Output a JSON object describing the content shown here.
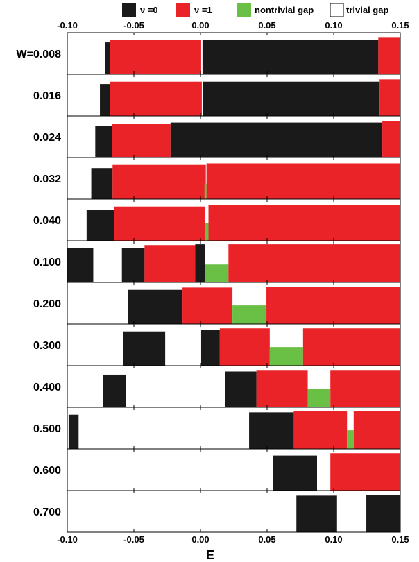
{
  "chart_data": {
    "type": "bar",
    "xlabel": "E",
    "xlim": [
      -0.1,
      0.15
    ],
    "xticks": [
      "-0.10",
      "-0.05",
      "0.00",
      "0.05",
      "0.10",
      "0.15"
    ],
    "xtick_values": [
      -0.1,
      -0.05,
      0.0,
      0.05,
      0.1,
      0.15
    ],
    "legend_position": "top",
    "legend": [
      {
        "label": "ν =0",
        "key": "nu0"
      },
      {
        "label": "ν =1",
        "key": "nu1"
      },
      {
        "label": "nontrivial gap",
        "key": "ntgap"
      },
      {
        "label": "trivial gap",
        "key": "tgap"
      }
    ],
    "colors": {
      "nu0": "#1a1a1a",
      "nu1": "#ea2328",
      "ntgap": "#6abf45",
      "tgap": "#ffffff"
    },
    "panels": [
      {
        "label": "W=0.008",
        "segments": [
          {
            "kind": "nu0",
            "x0": -0.0715,
            "x1": -0.068,
            "h": 0.82
          },
          {
            "kind": "nu1",
            "x0": -0.068,
            "x1": 0.0005,
            "h": 0.88
          },
          {
            "kind": "nu0",
            "x0": 0.0015,
            "x1": 0.1335,
            "h": 0.88
          },
          {
            "kind": "nu1",
            "x0": 0.1335,
            "x1": 0.15,
            "h": 0.94
          }
        ]
      },
      {
        "label": "0.016",
        "segments": [
          {
            "kind": "nu0",
            "x0": -0.0755,
            "x1": -0.068,
            "h": 0.82
          },
          {
            "kind": "nu1",
            "x0": -0.068,
            "x1": 0.001,
            "h": 0.88
          },
          {
            "kind": "nu0",
            "x0": 0.002,
            "x1": 0.1345,
            "h": 0.88
          },
          {
            "kind": "nu1",
            "x0": 0.1345,
            "x1": 0.15,
            "h": 0.94
          }
        ]
      },
      {
        "label": "0.024",
        "segments": [
          {
            "kind": "nu0",
            "x0": -0.079,
            "x1": -0.0665,
            "h": 0.82
          },
          {
            "kind": "nu1",
            "x0": -0.0665,
            "x1": -0.0225,
            "h": 0.86
          },
          {
            "kind": "nu0",
            "x0": -0.0225,
            "x1": 0.1365,
            "h": 0.9
          },
          {
            "kind": "nu1",
            "x0": 0.1365,
            "x1": 0.15,
            "h": 0.94
          }
        ]
      },
      {
        "label": "0.032",
        "segments": [
          {
            "kind": "nu0",
            "x0": -0.082,
            "x1": -0.066,
            "h": 0.8
          },
          {
            "kind": "nu1",
            "x0": -0.066,
            "x1": 0.004,
            "h": 0.88
          },
          {
            "kind": "ntgap",
            "x0": 0.003,
            "x1": 0.0045,
            "h": 0.4
          },
          {
            "kind": "nu1",
            "x0": 0.0045,
            "x1": 0.15,
            "h": 0.92
          }
        ]
      },
      {
        "label": "0.040",
        "segments": [
          {
            "kind": "nu0",
            "x0": -0.0855,
            "x1": -0.065,
            "h": 0.8
          },
          {
            "kind": "nu1",
            "x0": -0.065,
            "x1": 0.0035,
            "h": 0.88
          },
          {
            "kind": "ntgap",
            "x0": 0.0035,
            "x1": 0.006,
            "h": 0.45
          },
          {
            "kind": "nu1",
            "x0": 0.006,
            "x1": 0.15,
            "h": 0.92
          }
        ]
      },
      {
        "label": "0.100",
        "segments": [
          {
            "kind": "nu0",
            "x0": -0.1,
            "x1": -0.0805,
            "h": 0.88
          },
          {
            "kind": "nu0",
            "x0": -0.059,
            "x1": -0.042,
            "h": 0.88
          },
          {
            "kind": "nu1",
            "x0": -0.042,
            "x1": -0.004,
            "h": 0.96
          },
          {
            "kind": "nu0",
            "x0": -0.004,
            "x1": 0.0035,
            "h": 0.98
          },
          {
            "kind": "ntgap",
            "x0": 0.0035,
            "x1": 0.021,
            "h": 0.46
          },
          {
            "kind": "nu1",
            "x0": 0.021,
            "x1": 0.15,
            "h": 0.98
          }
        ]
      },
      {
        "label": "0.200",
        "segments": [
          {
            "kind": "nu0",
            "x0": -0.0545,
            "x1": -0.0135,
            "h": 0.88
          },
          {
            "kind": "nu1",
            "x0": -0.0135,
            "x1": 0.024,
            "h": 0.94
          },
          {
            "kind": "ntgap",
            "x0": 0.024,
            "x1": 0.0495,
            "h": 0.48
          },
          {
            "kind": "nu1",
            "x0": 0.0495,
            "x1": 0.15,
            "h": 0.96
          }
        ]
      },
      {
        "label": "0.300",
        "segments": [
          {
            "kind": "nu0",
            "x0": -0.058,
            "x1": -0.0265,
            "h": 0.88
          },
          {
            "kind": "nu0",
            "x0": 0.0005,
            "x1": 0.0145,
            "h": 0.92
          },
          {
            "kind": "nu1",
            "x0": 0.0145,
            "x1": 0.052,
            "h": 0.96
          },
          {
            "kind": "ntgap",
            "x0": 0.052,
            "x1": 0.077,
            "h": 0.48
          },
          {
            "kind": "nu1",
            "x0": 0.077,
            "x1": 0.15,
            "h": 0.96
          }
        ]
      },
      {
        "label": "0.400",
        "segments": [
          {
            "kind": "nu0",
            "x0": -0.073,
            "x1": -0.056,
            "h": 0.84
          },
          {
            "kind": "nu0",
            "x0": 0.0185,
            "x1": 0.042,
            "h": 0.92
          },
          {
            "kind": "nu1",
            "x0": 0.042,
            "x1": 0.0805,
            "h": 0.96
          },
          {
            "kind": "ntgap",
            "x0": 0.0805,
            "x1": 0.0975,
            "h": 0.48
          },
          {
            "kind": "nu1",
            "x0": 0.0975,
            "x1": 0.15,
            "h": 0.96
          }
        ]
      },
      {
        "label": "0.500",
        "segments": [
          {
            "kind": "nu0",
            "x0": -0.099,
            "x1": -0.0915,
            "h": 0.88
          },
          {
            "kind": "nu0",
            "x0": 0.0365,
            "x1": 0.07,
            "h": 0.94
          },
          {
            "kind": "nu1",
            "x0": 0.07,
            "x1": 0.11,
            "h": 0.98
          },
          {
            "kind": "ntgap",
            "x0": 0.11,
            "x1": 0.115,
            "h": 0.48
          },
          {
            "kind": "nu1",
            "x0": 0.115,
            "x1": 0.15,
            "h": 0.98
          }
        ]
      },
      {
        "label": "0.600",
        "segments": [
          {
            "kind": "nu0",
            "x0": 0.0545,
            "x1": 0.0875,
            "h": 0.9
          },
          {
            "kind": "nu1",
            "x0": 0.0975,
            "x1": 0.15,
            "h": 0.96
          }
        ]
      },
      {
        "label": "0.700",
        "segments": [
          {
            "kind": "nu0",
            "x0": 0.072,
            "x1": 0.1025,
            "h": 0.94
          },
          {
            "kind": "nu0",
            "x0": 0.1245,
            "x1": 0.15,
            "h": 0.96
          }
        ]
      }
    ]
  }
}
